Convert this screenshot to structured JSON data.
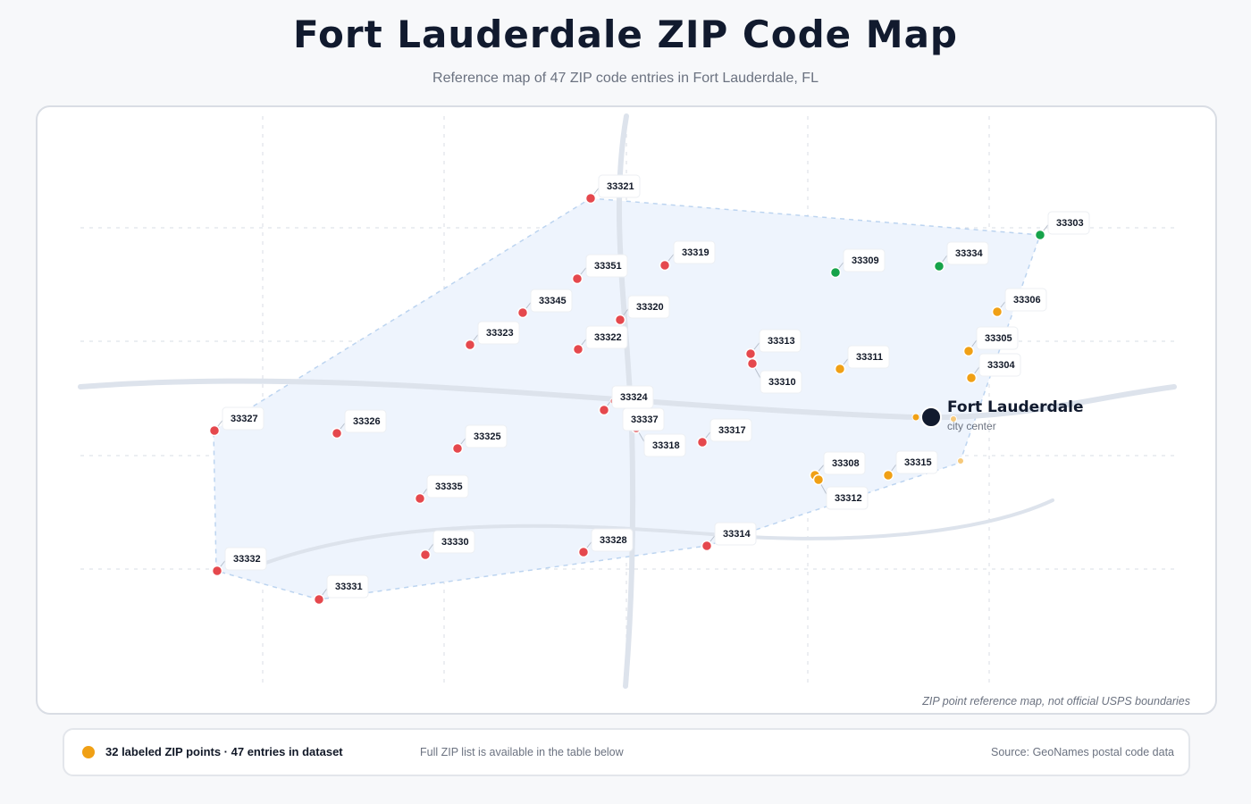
{
  "header": {
    "title": "Fort Lauderdale ZIP Code Map",
    "subtitle": "Reference map of 47 ZIP code entries in Fort Lauderdale, FL"
  },
  "map": {
    "disclaimer": "ZIP point reference map, not official USPS boundaries",
    "city": {
      "name": "Fort Lauderdale",
      "sublabel": "city center"
    },
    "colors": {
      "red": "#e5484d",
      "orange": "#f0a015",
      "green": "#16a34a",
      "city": "#111a2e",
      "region_fill": "#eef4fd",
      "region_stroke": "#bcd4f0",
      "road": "#dde3ec",
      "grid": "#dfe3ea"
    },
    "zip_points": [
      {
        "zip": "33321",
        "color": "red"
      },
      {
        "zip": "33303",
        "color": "green"
      },
      {
        "zip": "33319",
        "color": "red"
      },
      {
        "zip": "33351",
        "color": "red"
      },
      {
        "zip": "33309",
        "color": "green"
      },
      {
        "zip": "33334",
        "color": "green"
      },
      {
        "zip": "33345",
        "color": "red"
      },
      {
        "zip": "33320",
        "color": "red"
      },
      {
        "zip": "33306",
        "color": "orange"
      },
      {
        "zip": "33323",
        "color": "red"
      },
      {
        "zip": "33322",
        "color": "red"
      },
      {
        "zip": "33313",
        "color": "red"
      },
      {
        "zip": "33305",
        "color": "orange"
      },
      {
        "zip": "33311",
        "color": "orange"
      },
      {
        "zip": "33304",
        "color": "orange"
      },
      {
        "zip": "33310",
        "color": "red"
      },
      {
        "zip": "33324",
        "color": "red"
      },
      {
        "zip": "33337",
        "color": "red"
      },
      {
        "zip": "33327",
        "color": "red"
      },
      {
        "zip": "33326",
        "color": "red"
      },
      {
        "zip": "33318",
        "color": "red"
      },
      {
        "zip": "33317",
        "color": "red"
      },
      {
        "zip": "33325",
        "color": "red"
      },
      {
        "zip": "33308",
        "color": "orange"
      },
      {
        "zip": "33315",
        "color": "orange"
      },
      {
        "zip": "33312",
        "color": "orange"
      },
      {
        "zip": "33335",
        "color": "red"
      },
      {
        "zip": "33314",
        "color": "red"
      },
      {
        "zip": "33328",
        "color": "red"
      },
      {
        "zip": "33330",
        "color": "red"
      },
      {
        "zip": "33332",
        "color": "red"
      },
      {
        "zip": "33331",
        "color": "red"
      }
    ]
  },
  "legend": {
    "marker_color": "#f0a015",
    "summary": "32 labeled ZIP points · 47 entries in dataset",
    "note": "Full ZIP list is available in the table below",
    "source": "Source: GeoNames postal code data"
  }
}
